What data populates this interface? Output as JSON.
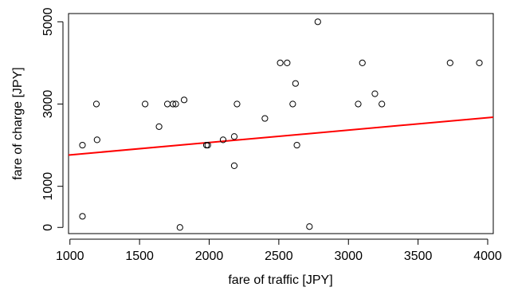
{
  "chart_data": {
    "type": "scatter",
    "title": "",
    "xlabel": "fare of traffic [JPY]",
    "ylabel": "fare of charge [JPY]",
    "xlim": [
      990,
      4040
    ],
    "ylim": [
      -150,
      5200
    ],
    "x_ticks": [
      1000,
      1500,
      2000,
      2500,
      3000,
      3500,
      4000
    ],
    "y_ticks": [
      0,
      1000,
      3000,
      5000
    ],
    "grid": false,
    "legend": "none",
    "colors": {
      "points": "#000000",
      "fit_line": "#ff0000",
      "axes": "#000000"
    },
    "points": [
      {
        "x": 1090,
        "y": 2000
      },
      {
        "x": 1090,
        "y": 270
      },
      {
        "x": 1190,
        "y": 3000
      },
      {
        "x": 1195,
        "y": 2130
      },
      {
        "x": 1540,
        "y": 3000
      },
      {
        "x": 1640,
        "y": 2450
      },
      {
        "x": 1700,
        "y": 3000
      },
      {
        "x": 1740,
        "y": 3000
      },
      {
        "x": 1760,
        "y": 3000
      },
      {
        "x": 1790,
        "y": 0
      },
      {
        "x": 1820,
        "y": 3100
      },
      {
        "x": 1980,
        "y": 2000
      },
      {
        "x": 1990,
        "y": 2000
      },
      {
        "x": 2100,
        "y": 2130
      },
      {
        "x": 2180,
        "y": 1500
      },
      {
        "x": 2180,
        "y": 2210
      },
      {
        "x": 2200,
        "y": 3000
      },
      {
        "x": 2400,
        "y": 2650
      },
      {
        "x": 2510,
        "y": 4000
      },
      {
        "x": 2560,
        "y": 4000
      },
      {
        "x": 2600,
        "y": 3000
      },
      {
        "x": 2620,
        "y": 3500
      },
      {
        "x": 2630,
        "y": 2000
      },
      {
        "x": 2720,
        "y": 20
      },
      {
        "x": 2780,
        "y": 5000
      },
      {
        "x": 3070,
        "y": 3000
      },
      {
        "x": 3100,
        "y": 4000
      },
      {
        "x": 3190,
        "y": 3250
      },
      {
        "x": 3240,
        "y": 3000
      },
      {
        "x": 3730,
        "y": 4000
      },
      {
        "x": 3940,
        "y": 4000
      }
    ],
    "fit_line": {
      "x": [
        990,
        4040
      ],
      "y": [
        1760,
        2680
      ]
    }
  }
}
